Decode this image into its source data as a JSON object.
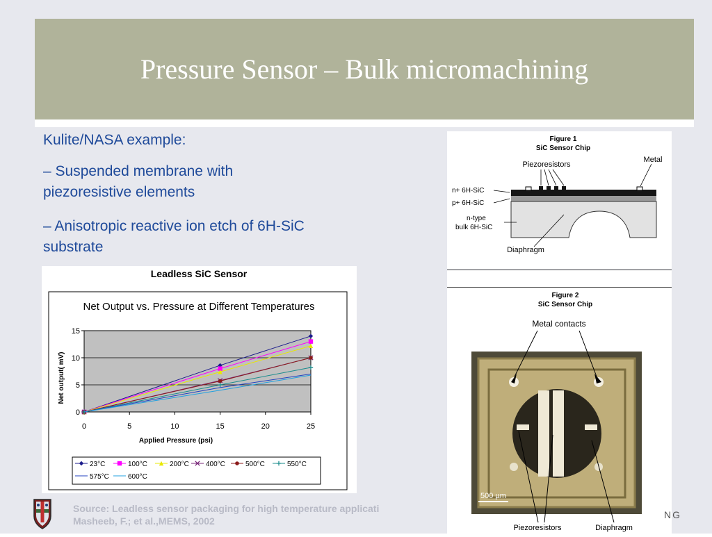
{
  "slide": {
    "title": "Pressure Sensor – Bulk micromachining",
    "bullets": [
      "Kulite/NASA example:",
      "– Suspended membrane with",
      "piezoresistive elements",
      "– Anisotropic reactive ion etch of 6H-SiC",
      "substrate"
    ],
    "source_line1": "Source: Leadless sensor packaging for high temperature applicati",
    "source_line2": "Masheeb, F.; et al.,MEMS, 2002",
    "corner_text": "NG"
  },
  "figure1": {
    "title": "Figure 1",
    "subtitle": "SiC Sensor Chip",
    "labels": {
      "piezoresistors": "Piezoresistors",
      "metal": "Metal",
      "n_layer": "n+ 6H-SiC",
      "p_layer": "p+ 6H-SiC",
      "bulk1": "n-type",
      "bulk2": "bulk 6H-SiC",
      "diaphragm": "Diaphragm"
    }
  },
  "figure2": {
    "title": "Figure 2",
    "subtitle": "SiC Sensor Chip",
    "labels": {
      "metal_contacts": "Metal contacts",
      "scale": "500 µm",
      "piezoresistors": "Piezoresistors",
      "diaphragm": "Diaphragm"
    }
  },
  "chart_data": {
    "type": "line",
    "panel_title": "Leadless SiC Sensor",
    "title": "Net Output vs. Pressure at Different Temperatures",
    "xlabel": "Applied Pressure (psi)",
    "ylabel": "Net output( mV)",
    "x": [
      0,
      15,
      25
    ],
    "xlim": [
      0,
      25
    ],
    "ylim": [
      0,
      15
    ],
    "xticks": [
      0,
      5,
      10,
      15,
      20,
      25
    ],
    "yticks": [
      0,
      5,
      10,
      15
    ],
    "grid": true,
    "legend_position": "bottom",
    "series": [
      {
        "name": "23°C",
        "values": [
          0,
          8.6,
          14.0
        ],
        "color": "#1c1c8c",
        "marker": "diamond"
      },
      {
        "name": "100°C",
        "values": [
          0,
          8.0,
          13.0
        ],
        "color": "#ff00ff",
        "marker": "square"
      },
      {
        "name": "200°C",
        "values": [
          0,
          7.4,
          12.2
        ],
        "color": "#e8e800",
        "marker": "triangle"
      },
      {
        "name": "400°C",
        "values": [
          0,
          5.8,
          10.0
        ],
        "color": "#7a2a7a",
        "marker": "x"
      },
      {
        "name": "500°C",
        "values": [
          0,
          5.7,
          10.0
        ],
        "color": "#8b1a1a",
        "marker": "circle"
      },
      {
        "name": "550°C",
        "values": [
          0,
          5.0,
          8.2
        ],
        "color": "#1a8c8c",
        "marker": "plus"
      },
      {
        "name": "575°C",
        "values": [
          0,
          4.5,
          7.0
        ],
        "color": "#2040c0",
        "marker": "none"
      },
      {
        "name": "600°C",
        "values": [
          0,
          4.0,
          6.8
        ],
        "color": "#20a0e0",
        "marker": "none"
      }
    ]
  }
}
